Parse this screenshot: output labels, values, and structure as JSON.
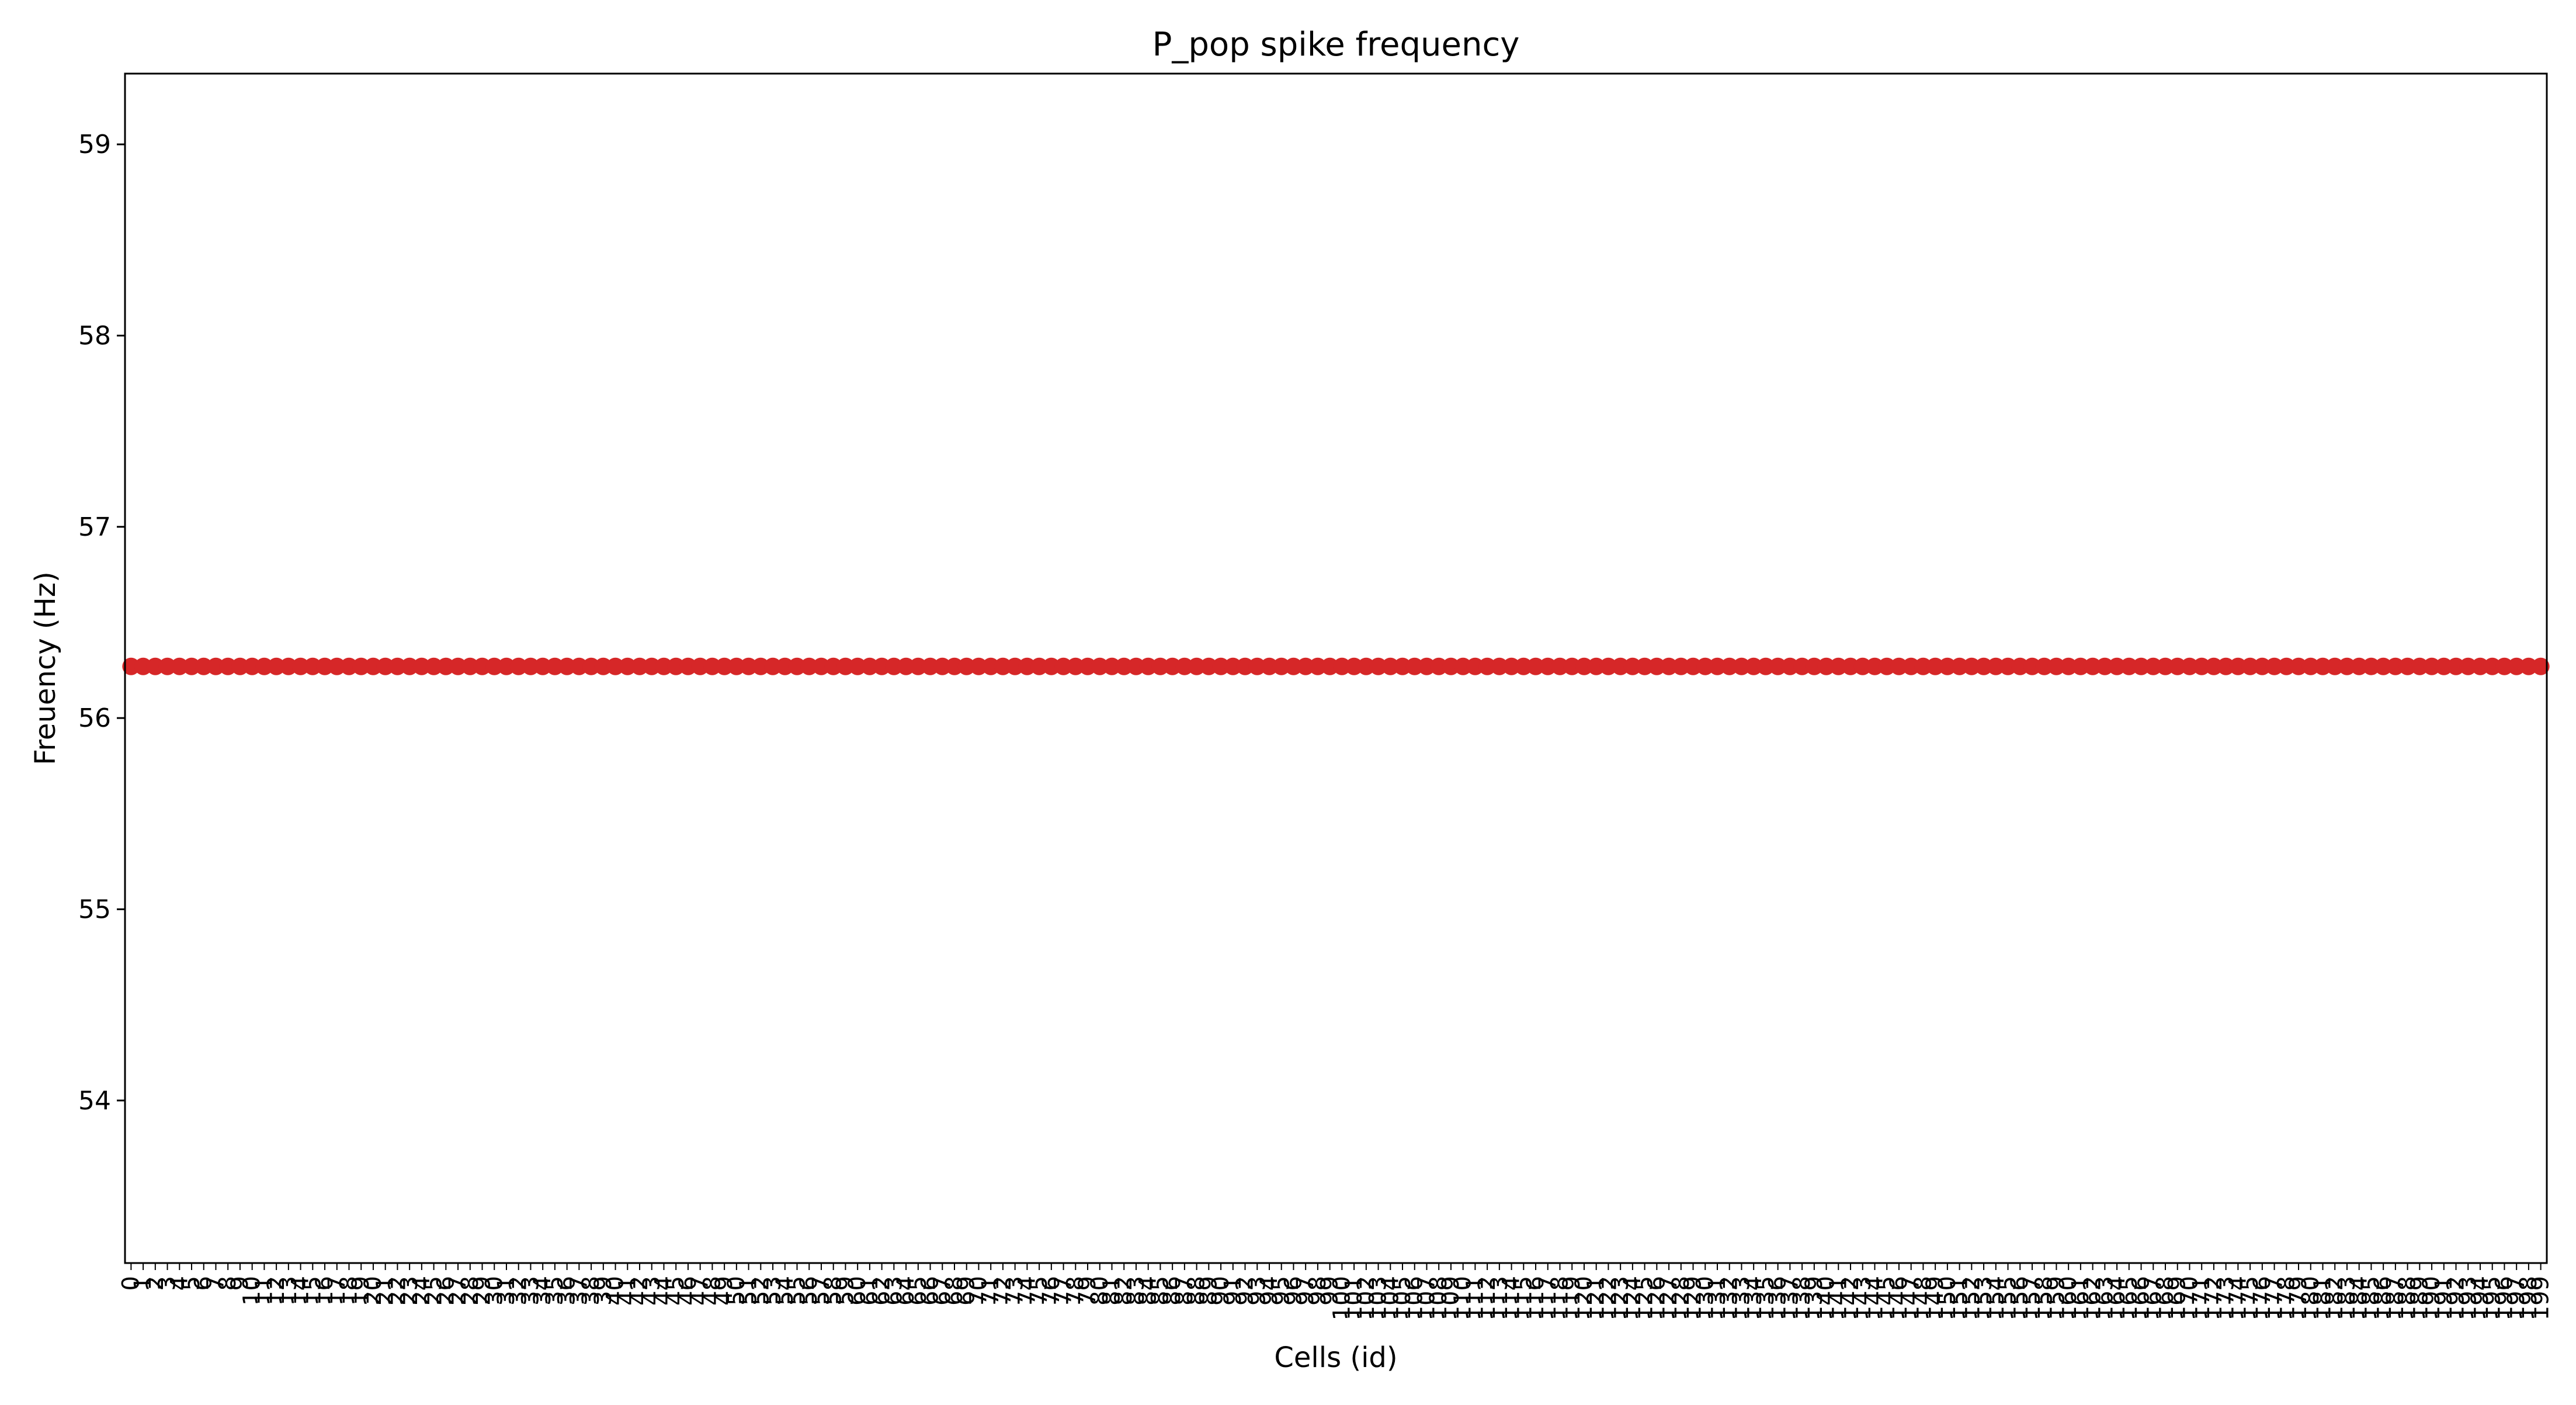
{
  "chart_data": {
    "type": "scatter",
    "title": "P_pop spike frequency",
    "xlabel": "Cells (id)",
    "ylabel": "Freuency (Hz)",
    "ylim": [
      53.15,
      59.37
    ],
    "yticks": [
      54,
      55,
      56,
      57,
      58,
      59
    ],
    "x_range": [
      0,
      199
    ],
    "x_ticks": "each integer cell id 0–199 (labels overlap)",
    "series": [
      {
        "value": 56.27,
        "x_start": 0,
        "x_end": 199,
        "color": "#d62728"
      }
    ],
    "grid": false,
    "legend": "none"
  }
}
